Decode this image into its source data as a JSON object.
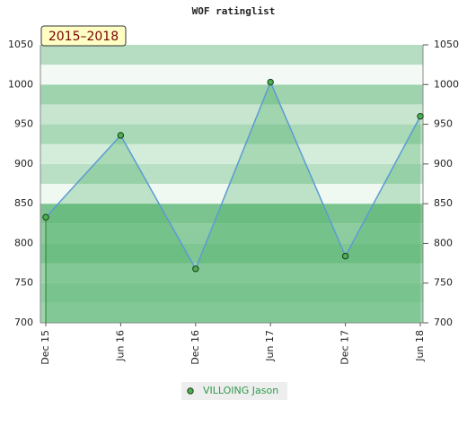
{
  "chart_data": {
    "type": "area",
    "title": "WOF ratinglist",
    "annotation": "2015–2018",
    "categories": [
      "Dec 15",
      "Jun 16",
      "Dec 16",
      "Jun 17",
      "Dec 17",
      "Jun 18"
    ],
    "series": [
      {
        "name": "VILLOING Jason",
        "color": "#4caf50",
        "values": [
          833,
          936,
          768,
          1003,
          784,
          960
        ]
      }
    ],
    "ylim": [
      700,
      1050
    ],
    "yticks": [
      700,
      750,
      800,
      850,
      900,
      950,
      1000,
      1050
    ]
  }
}
